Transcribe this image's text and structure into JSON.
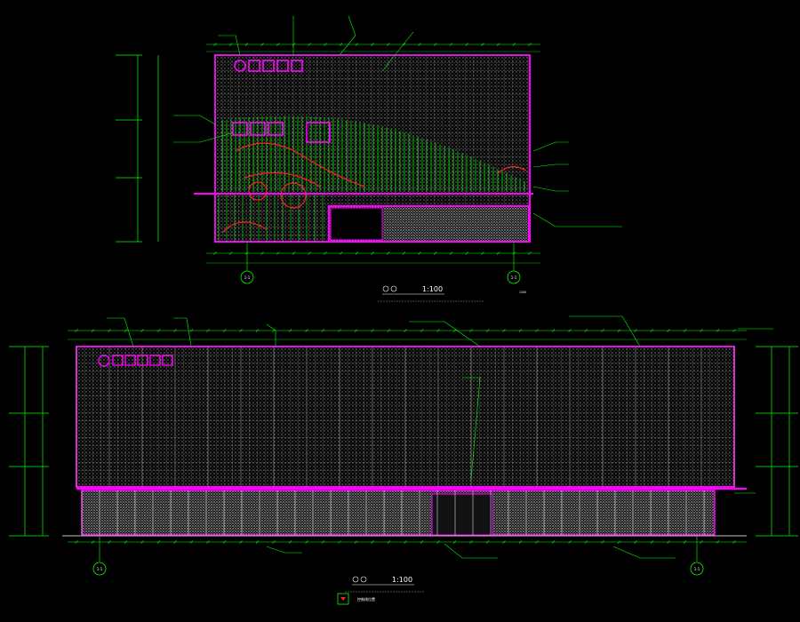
{
  "colors": {
    "background": "#000000",
    "facade_outline": "#ff00ff",
    "grid": "#ffffff",
    "dimension": "#00ff00",
    "mullion_green": "#00ff00",
    "accent_red": "#ff2020",
    "panel_white": "#ffffff"
  },
  "top_elevation": {
    "title": "1:100",
    "scale_label": "1:100",
    "left_axis_label": "1-1",
    "right_axis_label": "1-1",
    "note_label": "1200"
  },
  "bottom_elevation": {
    "title": "1:100",
    "left_axis_label": "1-1",
    "right_axis_label": "1-1"
  },
  "legend": {
    "icon": "legend-marker-icon",
    "label": "控制线位置"
  }
}
